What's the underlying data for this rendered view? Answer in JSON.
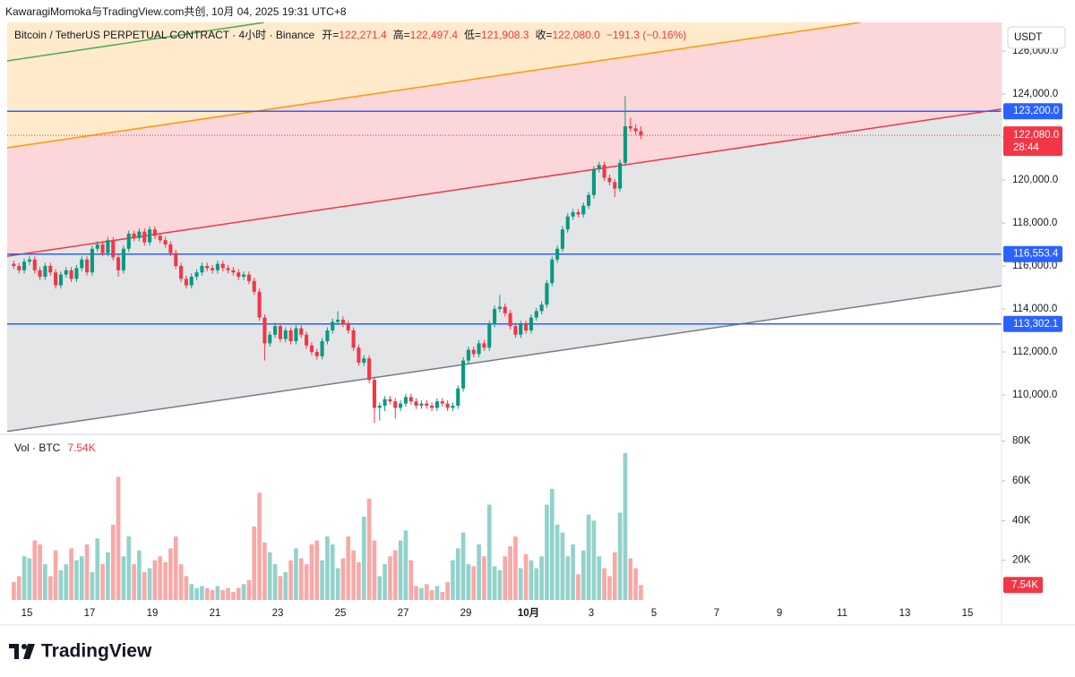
{
  "header": "KawaragiMomoka与TradingView.com共创, 10月 04, 2025 19:31 UTC+8",
  "footer": "TradingView",
  "chart_data": {
    "type": "candlestick",
    "symbol": "Bitcoin / TetherUS PERPETUAL CONTRACT · 4小时 · Binance",
    "ohlc_legend": [
      {
        "label": "开=",
        "value": "122,271.4"
      },
      {
        "label": "高=",
        "value": "122,497.4"
      },
      {
        "label": "低=",
        "value": "121,908.3"
      },
      {
        "label": "收=",
        "value": "122,080.0"
      }
    ],
    "change": "−191.3 (−0.16%)",
    "currency": "USDT",
    "up_color": "#089981",
    "down_color": "#f23645",
    "volume_up_color": "#92d2cc",
    "volume_down_color": "#f7a9a7",
    "xlim": [
      -3.77,
      186.51
    ],
    "xticks": [
      {
        "value": 0,
        "label": "15"
      },
      {
        "value": 12,
        "label": "17"
      },
      {
        "value": 24,
        "label": "19"
      },
      {
        "value": 36,
        "label": "21"
      },
      {
        "value": 48,
        "label": "23"
      },
      {
        "value": 60,
        "label": "25"
      },
      {
        "value": 72,
        "label": "27"
      },
      {
        "value": 84,
        "label": "29"
      },
      {
        "value": 96,
        "label": "10月"
      },
      {
        "value": 108,
        "label": "3"
      },
      {
        "value": 120,
        "label": "5"
      },
      {
        "value": 132,
        "label": "7"
      },
      {
        "value": 144,
        "label": "9"
      },
      {
        "value": 156,
        "label": "11"
      },
      {
        "value": 168,
        "label": "13"
      },
      {
        "value": 180,
        "label": "15"
      }
    ],
    "ylim": [
      108208,
      127333
    ],
    "yticks": [
      {
        "value": 110000,
        "label": "110,000.0"
      },
      {
        "value": 112000,
        "label": "112,000.0"
      },
      {
        "value": 114000,
        "label": "114,000.0"
      },
      {
        "value": 116000,
        "label": "116,000.0"
      },
      {
        "value": 118000,
        "label": "118,000.0"
      },
      {
        "value": 120000,
        "label": "120,000.0"
      },
      {
        "value": 122000,
        "label": "122,000.0"
      },
      {
        "value": 124000,
        "label": "124,000.0"
      },
      {
        "value": 126000,
        "label": "126,000.0"
      }
    ],
    "volume_title": "Vol · BTC",
    "volume_last_label": "7.54K",
    "vlim": [
      0,
      83000
    ],
    "vticks": [
      {
        "value": 20000,
        "label": "20K"
      },
      {
        "value": 40000,
        "label": "40K"
      },
      {
        "value": 60000,
        "label": "60K"
      },
      {
        "value": 80000,
        "label": "80K"
      }
    ],
    "levels": [
      {
        "value": 123200,
        "label": "123,200.0",
        "color": "#2962ff"
      },
      {
        "value": 116553.4,
        "label": "116,553.4",
        "color": "#2962ff"
      },
      {
        "value": 113302.1,
        "label": "113,302.1",
        "color": "#2962ff"
      }
    ],
    "last_price": {
      "value": 122080,
      "label": "122,080.0",
      "countdown": "28:44",
      "color": "#f23645"
    },
    "trendlines": [
      {
        "color": "#787b86",
        "fill": "rgba(120,123,134,0.2)",
        "points": [
          [
            -3.77,
            108300
          ],
          [
            186.51,
            115080
          ]
        ]
      },
      {
        "color": "#f23645",
        "fill": "rgba(242,54,69,0.2)",
        "points": [
          [
            -3.77,
            116450
          ],
          [
            186.51,
            123300
          ]
        ]
      },
      {
        "color": "#ff9800",
        "fill": "rgba(255,152,0,0.2)",
        "points": [
          [
            -3.77,
            121500
          ],
          [
            159.4,
            127330
          ]
        ]
      },
      {
        "color": "#4caf50",
        "fill": "rgba(255,152,0,0.2)",
        "points": [
          [
            -3.77,
            125540
          ],
          [
            45.4,
            127330
          ]
        ]
      }
    ],
    "candles": {
      "x": [
        -3,
        -2,
        -1,
        0,
        1,
        2,
        3,
        4,
        5,
        6,
        7,
        8,
        9,
        10,
        11,
        12,
        13,
        14,
        15,
        16,
        17,
        18,
        19,
        20,
        21,
        22,
        23,
        24,
        25,
        26,
        27,
        28,
        29,
        30,
        31,
        32,
        33,
        34,
        35,
        36,
        37,
        38,
        39,
        40,
        41,
        42,
        43,
        44,
        45,
        46,
        47,
        48,
        49,
        50,
        51,
        52,
        53,
        54,
        55,
        56,
        57,
        58,
        59,
        60,
        61,
        62,
        63,
        64,
        65,
        66,
        67,
        68,
        69,
        70,
        71,
        72,
        73,
        74,
        75,
        76,
        77,
        78,
        79,
        80,
        81,
        82,
        83,
        84,
        85,
        86,
        87,
        88,
        89,
        90,
        91,
        92,
        93,
        94,
        95,
        96,
        97,
        98,
        99,
        100,
        101,
        102,
        103,
        104,
        105,
        106,
        107,
        108,
        109,
        110,
        111,
        112,
        113,
        114,
        115,
        116,
        117
      ],
      "open": [
        116100,
        116000,
        115800,
        116200,
        116300,
        115800,
        115500,
        116000,
        115700,
        115100,
        115600,
        115800,
        115400,
        115900,
        116300,
        115700,
        116800,
        117000,
        116600,
        117200,
        116400,
        115800,
        116800,
        117500,
        117300,
        117600,
        117100,
        117700,
        117400,
        117200,
        117000,
        116600,
        116000,
        115400,
        115100,
        115500,
        115700,
        116000,
        115900,
        115800,
        116100,
        115900,
        115800,
        115700,
        115500,
        115600,
        115300,
        114800,
        113600,
        112400,
        112800,
        113200,
        112600,
        113000,
        112500,
        113100,
        112800,
        112300,
        112000,
        111800,
        112500,
        113000,
        113400,
        113500,
        113300,
        113000,
        112200,
        111500,
        111700,
        110700,
        109400,
        109500,
        109800,
        109700,
        109400,
        109600,
        109900,
        109700,
        109500,
        109600,
        109500,
        109400,
        109700,
        109600,
        109400,
        109500,
        110300,
        111600,
        112100,
        111900,
        112400,
        112200,
        113300,
        114000,
        114100,
        113800,
        113200,
        112800,
        113300,
        113000,
        113600,
        113900,
        114200,
        115200,
        116300,
        116800,
        117700,
        118300,
        118500,
        118400,
        118800,
        119300,
        120500,
        120700,
        120100,
        119900,
        119600,
        120800,
        122500,
        122400,
        122271.4
      ],
      "high": [
        116250,
        116150,
        116350,
        116450,
        116450,
        115950,
        116150,
        116150,
        115850,
        115750,
        115950,
        115950,
        116050,
        116450,
        116450,
        116950,
        117150,
        117150,
        117350,
        117350,
        116550,
        116950,
        117650,
        117650,
        117750,
        117750,
        117850,
        117850,
        117550,
        117350,
        117150,
        116750,
        116150,
        115550,
        115650,
        115850,
        116150,
        116150,
        116050,
        116250,
        116250,
        116050,
        115950,
        115850,
        115750,
        115750,
        115450,
        114950,
        113750,
        112950,
        113350,
        113350,
        113150,
        113150,
        113250,
        113250,
        112950,
        112450,
        112150,
        112650,
        113150,
        113550,
        113900,
        113650,
        113450,
        113150,
        112350,
        111850,
        111850,
        110850,
        109650,
        109950,
        109950,
        109850,
        109750,
        110050,
        110050,
        109850,
        109750,
        109750,
        109650,
        109850,
        109850,
        109750,
        109650,
        110450,
        111750,
        112250,
        112250,
        112550,
        112550,
        113450,
        114150,
        114650,
        114250,
        113950,
        113350,
        113450,
        113450,
        113750,
        114050,
        114350,
        115350,
        116450,
        116950,
        117850,
        118450,
        118650,
        118650,
        118950,
        119450,
        120650,
        120850,
        120850,
        120250,
        120050,
        120950,
        123900,
        122900,
        122600,
        122497.4
      ],
      "low": [
        115850,
        115650,
        115650,
        116050,
        115650,
        115350,
        115350,
        115550,
        114950,
        114950,
        115450,
        115250,
        115250,
        115750,
        115550,
        115550,
        116650,
        116450,
        116450,
        116250,
        115500,
        115650,
        116650,
        117150,
        117150,
        116950,
        116950,
        117250,
        117050,
        116850,
        116450,
        115850,
        115250,
        114950,
        114950,
        115350,
        115550,
        115750,
        115650,
        115650,
        115750,
        115650,
        115550,
        115350,
        115350,
        115150,
        114650,
        113450,
        111600,
        112250,
        112650,
        112450,
        112450,
        112350,
        112350,
        112650,
        112150,
        111850,
        111650,
        111650,
        112350,
        112850,
        113250,
        113150,
        112850,
        112050,
        111350,
        111350,
        110550,
        108700,
        108800,
        109250,
        109550,
        108900,
        109250,
        109450,
        109550,
        109350,
        109350,
        109350,
        109250,
        109250,
        109450,
        109250,
        109250,
        109350,
        110150,
        111450,
        111750,
        111750,
        112050,
        112050,
        113150,
        113850,
        113650,
        113050,
        112650,
        112650,
        112850,
        112850,
        113450,
        113750,
        114050,
        115050,
        116150,
        116650,
        117550,
        118150,
        118250,
        118250,
        118650,
        119150,
        120350,
        119950,
        119750,
        119200,
        119450,
        120650,
        122250,
        122100,
        121908.3
      ],
      "close": [
        116000,
        115800,
        116200,
        116300,
        115800,
        115500,
        116000,
        115700,
        115100,
        115600,
        115800,
        115400,
        115900,
        116300,
        115700,
        116800,
        117000,
        116600,
        117200,
        116400,
        115800,
        116800,
        117500,
        117300,
        117600,
        117100,
        117700,
        117400,
        117200,
        117000,
        116600,
        116000,
        115400,
        115100,
        115500,
        115700,
        116000,
        115900,
        115800,
        116100,
        115900,
        115800,
        115700,
        115500,
        115600,
        115300,
        114800,
        113600,
        112400,
        112800,
        113200,
        112600,
        113000,
        112500,
        113100,
        112800,
        112300,
        112000,
        111800,
        112500,
        113000,
        113400,
        113500,
        113300,
        113000,
        112200,
        111500,
        111700,
        110700,
        109400,
        109500,
        109800,
        109700,
        109400,
        109600,
        109900,
        109700,
        109500,
        109600,
        109500,
        109400,
        109700,
        109600,
        109400,
        109500,
        110300,
        111600,
        112100,
        111900,
        112400,
        112200,
        113300,
        114000,
        114100,
        113800,
        113200,
        112800,
        113300,
        113000,
        113600,
        113900,
        114200,
        115200,
        116300,
        116800,
        117700,
        118300,
        118500,
        118400,
        118800,
        119300,
        120500,
        120700,
        120100,
        119900,
        119600,
        120800,
        122500,
        122400,
        122271.4,
        122080
      ],
      "volume": [
        9000,
        12000,
        22000,
        21000,
        30000,
        28000,
        18000,
        12000,
        25000,
        15000,
        18000,
        26000,
        20000,
        22000,
        28000,
        14000,
        31000,
        18000,
        24000,
        38000,
        62000,
        22000,
        32000,
        18000,
        25000,
        14000,
        16000,
        20000,
        22000,
        19000,
        26000,
        32000,
        18000,
        12000,
        8000,
        6000,
        7000,
        6000,
        5000,
        7000,
        5000,
        6000,
        4000,
        6000,
        8000,
        10000,
        37000,
        54000,
        29000,
        24000,
        18000,
        12000,
        14000,
        20000,
        26000,
        21000,
        18000,
        28000,
        30000,
        20000,
        32000,
        28000,
        16000,
        21000,
        32000,
        25000,
        19000,
        42000,
        51000,
        30000,
        12000,
        18000,
        22000,
        25000,
        30000,
        35000,
        20000,
        7000,
        6000,
        8000,
        5000,
        7000,
        4000,
        9000,
        20000,
        26000,
        34000,
        18000,
        17000,
        28000,
        22000,
        48000,
        17000,
        15000,
        22000,
        27000,
        32000,
        16000,
        23000,
        20000,
        16000,
        22000,
        48000,
        56000,
        38000,
        34000,
        22000,
        28000,
        13000,
        25000,
        43000,
        40000,
        22000,
        16000,
        12000,
        24000,
        44000,
        74000,
        21000,
        16000,
        7540
      ]
    }
  }
}
